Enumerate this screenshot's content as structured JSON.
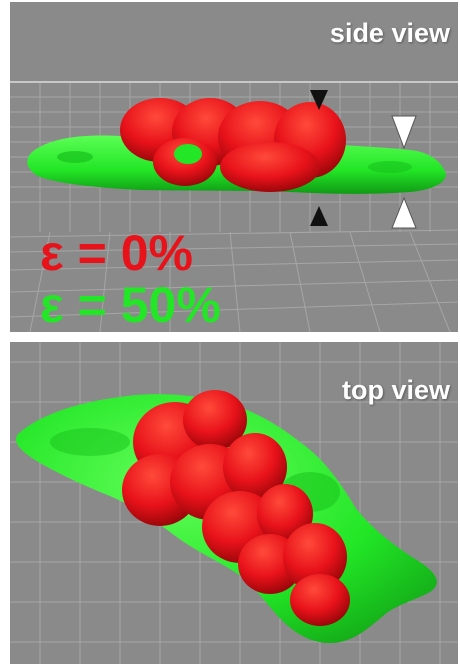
{
  "panels": {
    "side": {
      "label": "side view"
    },
    "top": {
      "label": "top view"
    }
  },
  "legend": [
    {
      "text": "ε = 0%",
      "color": "#e8121a"
    },
    {
      "text": "ε = 50%",
      "color": "#22e626"
    }
  ],
  "colors": {
    "panel_background": "#8a8a8a",
    "grid": "#a6a6a6",
    "red_cells": "#e8121a",
    "green_cells": "#22e626",
    "black_marker": "#111111",
    "white_marker": "#ffffff"
  },
  "icons": [
    "black-arrowhead-icon",
    "white-arrowhead-icon"
  ]
}
